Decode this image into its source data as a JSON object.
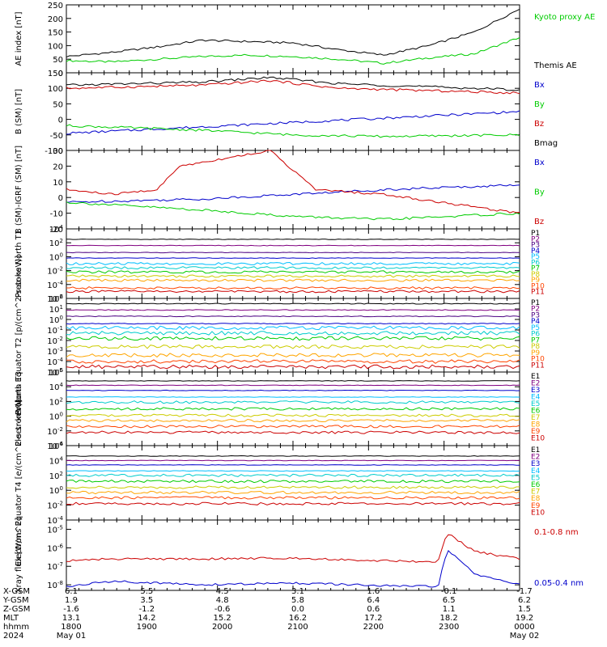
{
  "chart_data": [
    {
      "type": "line",
      "ylabel": "AE index [nT]",
      "ylim": [
        0,
        250
      ],
      "yticks": [
        "0",
        "50",
        "100",
        "150",
        "200",
        "250"
      ],
      "legend_placement": "right",
      "series": [
        {
          "name": "Kyoto proxy AE",
          "color": "#00cc00",
          "x": [
            0,
            0.1,
            0.2,
            0.3,
            0.4,
            0.5,
            0.6,
            0.7,
            0.8,
            0.9,
            1
          ],
          "values": [
            45,
            40,
            50,
            60,
            65,
            60,
            50,
            35,
            55,
            70,
            130
          ]
        },
        {
          "name": "Themis AE",
          "color": "#000000",
          "x": [
            0,
            0.1,
            0.2,
            0.3,
            0.4,
            0.5,
            0.6,
            0.7,
            0.8,
            0.9,
            1
          ],
          "values": [
            60,
            75,
            95,
            120,
            115,
            110,
            85,
            65,
            100,
            150,
            235
          ]
        }
      ]
    },
    {
      "type": "line",
      "ylabel": "B (SM) [nT]",
      "ylim": [
        -100,
        150
      ],
      "yticks": [
        "150",
        "100",
        "50",
        "0",
        "-50",
        "-100"
      ],
      "legend_placement": "right",
      "series": [
        {
          "name": "Bx",
          "color": "#0000cc",
          "x": [
            0,
            0.5,
            1
          ],
          "values": [
            -45,
            -10,
            25
          ]
        },
        {
          "name": "By",
          "color": "#00cc00",
          "x": [
            0,
            0.3,
            0.5,
            0.7,
            1
          ],
          "values": [
            -20,
            -35,
            -50,
            -55,
            -50
          ]
        },
        {
          "name": "Bz",
          "color": "#cc0000",
          "x": [
            0,
            0.3,
            0.45,
            0.6,
            1
          ],
          "values": [
            100,
            110,
            125,
            100,
            85
          ]
        },
        {
          "name": "Bmag",
          "color": "#000000",
          "x": [
            0,
            0.3,
            0.45,
            0.6,
            1
          ],
          "values": [
            110,
            120,
            135,
            115,
            95
          ]
        }
      ]
    },
    {
      "type": "line",
      "ylabel": "B (SM)-IGRF (SM) [nT]",
      "ylim": [
        -20,
        30
      ],
      "yticks": [
        "30",
        "20",
        "10",
        "0",
        "-10",
        "-20"
      ],
      "legend_placement": "right",
      "series": [
        {
          "name": "Bx",
          "color": "#0000cc",
          "x": [
            0,
            0.3,
            0.5,
            0.7,
            1
          ],
          "values": [
            -3,
            -1,
            2,
            5,
            8
          ]
        },
        {
          "name": "By",
          "color": "#00cc00",
          "x": [
            0,
            0.3,
            0.5,
            0.7,
            1
          ],
          "values": [
            -3,
            -8,
            -12,
            -14,
            -10
          ]
        },
        {
          "name": "Bz",
          "color": "#cc0000",
          "x": [
            0,
            0.1,
            0.2,
            0.25,
            0.35,
            0.45,
            0.55,
            0.7,
            1
          ],
          "values": [
            5,
            2,
            5,
            20,
            25,
            30,
            5,
            2,
            -10
          ]
        }
      ]
    },
    {
      "type": "line",
      "ylabel": "Protons North T1",
      "ylim": [
        -6,
        4
      ],
      "log_scale": true,
      "yticks": [
        "10^4",
        "10^2",
        "10^0",
        "10^-2",
        "10^-4",
        "10^-6"
      ],
      "legend_placement": "right",
      "series": [
        {
          "name": "P1",
          "color": "#000000",
          "level": 2.5
        },
        {
          "name": "P2",
          "color": "#800080",
          "level": 1.6
        },
        {
          "name": "P3",
          "color": "#4b0082",
          "level": 0.6
        },
        {
          "name": "P4",
          "color": "#0000cc",
          "level": -0.2
        },
        {
          "name": "P5",
          "color": "#00bfff",
          "level": -1.0
        },
        {
          "name": "P6",
          "color": "#00cccc",
          "level": -1.6
        },
        {
          "name": "P7",
          "color": "#00cc00",
          "level": -2.2
        },
        {
          "name": "P8",
          "color": "#cccc00",
          "level": -2.8
        },
        {
          "name": "P9",
          "color": "#ffa500",
          "level": -3.4
        },
        {
          "name": "P10",
          "color": "#ff4500",
          "level": -4.5
        },
        {
          "name": "P11",
          "color": "#cc0000",
          "level": -5.0
        }
      ]
    },
    {
      "type": "line",
      "ylabel": "Protons Equator T2 [p/(cm^2-s-sr-keV)]",
      "ylim": [
        -5,
        2
      ],
      "log_scale": true,
      "yticks": [
        "10^2",
        "10^1",
        "10^0",
        "10^-1",
        "10^-2",
        "10^-3",
        "10^-4",
        "10^-5"
      ],
      "legend_placement": "right",
      "series": [
        {
          "name": "P1",
          "color": "#000000",
          "level": 1.5
        },
        {
          "name": "P2",
          "color": "#800080",
          "level": 0.9
        },
        {
          "name": "P3",
          "color": "#4b0082",
          "level": 0.3
        },
        {
          "name": "P4",
          "color": "#0000cc",
          "level": -0.4
        },
        {
          "name": "P5",
          "color": "#00bfff",
          "level": -0.8
        },
        {
          "name": "P6",
          "color": "#00cccc",
          "level": -1.3
        },
        {
          "name": "P7",
          "color": "#00cc00",
          "level": -1.8
        },
        {
          "name": "P8",
          "color": "#cccc00",
          "level": -2.6
        },
        {
          "name": "P9",
          "color": "#ffa500",
          "level": -3.4
        },
        {
          "name": "P10",
          "color": "#ff4500",
          "level": -4.0
        },
        {
          "name": "P11",
          "color": "#cc0000",
          "level": -4.5
        }
      ]
    },
    {
      "type": "line",
      "ylabel": "Electrons North T3",
      "ylim": [
        -4,
        6
      ],
      "log_scale": true,
      "yticks": [
        "10^6",
        "10^4",
        "10^2",
        "10^0",
        "10^-2",
        "10^-4"
      ],
      "legend_placement": "right",
      "series": [
        {
          "name": "E1",
          "color": "#000000",
          "level": 4.8
        },
        {
          "name": "E2",
          "color": "#800080",
          "level": 4.2
        },
        {
          "name": "E3",
          "color": "#0000cc",
          "level": 3.5
        },
        {
          "name": "E4",
          "color": "#00bfff",
          "level": 2.6
        },
        {
          "name": "E5",
          "color": "#00cccc",
          "level": 1.9
        },
        {
          "name": "E6",
          "color": "#00cc00",
          "level": 1.0
        },
        {
          "name": "E7",
          "color": "#cccc00",
          "level": 0.1
        },
        {
          "name": "E8",
          "color": "#ffa500",
          "level": -0.6
        },
        {
          "name": "E9",
          "color": "#ff4500",
          "level": -1.4
        },
        {
          "name": "E10",
          "color": "#cc0000",
          "level": -2.2
        }
      ]
    },
    {
      "type": "line",
      "ylabel": "Electrons Equator T4 [e/(cm^2-s-sr-keV)]",
      "ylim": [
        -4,
        6
      ],
      "log_scale": true,
      "yticks": [
        "10^6",
        "10^4",
        "10^2",
        "10^0",
        "10^-2",
        "10^-4"
      ],
      "legend_placement": "right",
      "series": [
        {
          "name": "E1",
          "color": "#000000",
          "level": 4.6
        },
        {
          "name": "E2",
          "color": "#800080",
          "level": 4.0
        },
        {
          "name": "E3",
          "color": "#0000cc",
          "level": 3.4
        },
        {
          "name": "E4",
          "color": "#00bfff",
          "level": 2.6
        },
        {
          "name": "E5",
          "color": "#00cccc",
          "level": 2.0
        },
        {
          "name": "E6",
          "color": "#00cc00",
          "level": 1.2
        },
        {
          "name": "E7",
          "color": "#cccc00",
          "level": 0.4
        },
        {
          "name": "E8",
          "color": "#ffa500",
          "level": -0.3
        },
        {
          "name": "E9",
          "color": "#ff4500",
          "level": -1.0
        },
        {
          "name": "E10",
          "color": "#cc0000",
          "level": -1.8
        }
      ]
    },
    {
      "type": "line",
      "ylabel": "Xray flux [W/m^2]",
      "ylim": [
        -8.3,
        -4.5
      ],
      "log_scale": true,
      "yticks": [
        "10^-5",
        "10^-6",
        "10^-7",
        "10^-8"
      ],
      "legend_placement": "right",
      "series": [
        {
          "name": "0.1-0.8 nm",
          "color": "#cc0000",
          "x": [
            0,
            0.1,
            0.3,
            0.5,
            0.7,
            0.82,
            0.84,
            0.9,
            1
          ],
          "values": [
            -6.7,
            -6.6,
            -6.6,
            -6.55,
            -6.7,
            -6.75,
            -5.2,
            -6.2,
            -6.6
          ]
        },
        {
          "name": "0.05-0.4 nm",
          "color": "#0000cc",
          "x": [
            0,
            0.1,
            0.3,
            0.5,
            0.7,
            0.82,
            0.84,
            0.9,
            1
          ],
          "values": [
            -8.1,
            -7.8,
            -8.0,
            -7.9,
            -8.05,
            -8.1,
            -6.1,
            -7.4,
            -8.0
          ]
        }
      ]
    }
  ],
  "footer": {
    "row_labels": [
      "X-GSM",
      "Y-GSM",
      "Z-GSM",
      "MLT",
      "hhmm",
      "2024"
    ],
    "columns": [
      [
        "6.1",
        "1.9",
        "-1.6",
        "13.1",
        "1800",
        "May 01"
      ],
      [
        "5.5",
        "3.5",
        "-1.2",
        "14.2",
        "1900",
        ""
      ],
      [
        "4.5",
        "4.8",
        "-0.6",
        "15.2",
        "2000",
        ""
      ],
      [
        "3.1",
        "5.8",
        "0.0",
        "16.2",
        "2100",
        ""
      ],
      [
        "1.6",
        "6.4",
        "0.6",
        "17.2",
        "2200",
        ""
      ],
      [
        "-0.1",
        "6.5",
        "1.1",
        "18.2",
        "2300",
        ""
      ],
      [
        "-1.7",
        "6.2",
        "1.5",
        "19.2",
        "0000",
        "May 02"
      ]
    ]
  }
}
